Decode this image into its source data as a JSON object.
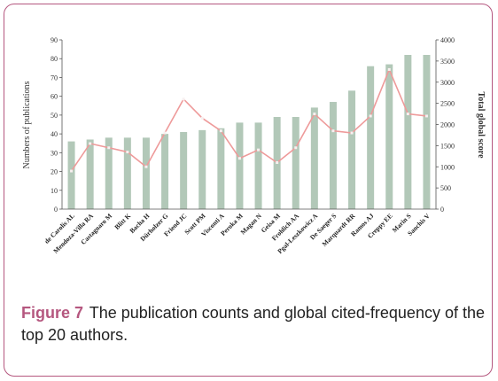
{
  "chart_data": {
    "type": "bar",
    "categories": [
      "de Carolis AL",
      "Mendoza-Villa RA",
      "Castagnaro M",
      "Blitt K",
      "Bacha H",
      "Dürholzer G",
      "Friend JC",
      "Scott PM",
      "Visconti A",
      "Peroka M",
      "Magan N",
      "Geisa M",
      "Frohlich AA",
      "Pgal-Leszkowicz A",
      "De Saeger S",
      "Marquardt RR",
      "Ramos AJ",
      "Creppy EE",
      "Marin S",
      "Sanchis V"
    ],
    "series": [
      {
        "name": "",
        "kind": "bar",
        "axis": "left",
        "values": [
          36,
          37,
          38,
          38,
          38,
          40,
          41,
          42,
          43,
          46,
          46,
          49,
          49,
          54,
          57,
          63,
          76,
          77,
          82,
          82
        ]
      },
      {
        "name": "",
        "kind": "line",
        "axis": "right",
        "values": [
          900,
          1550,
          1450,
          1350,
          1000,
          1800,
          2600,
          2150,
          1850,
          1200,
          1400,
          1100,
          1450,
          2250,
          1850,
          1800,
          2200,
          3300,
          2250,
          2200
        ]
      }
    ],
    "ylabel": "Numbers of publications",
    "y2label": "Total global score",
    "ylim": [
      0,
      90
    ],
    "y2lim": [
      0,
      4000
    ],
    "yticks": [
      0,
      10,
      20,
      30,
      40,
      50,
      60,
      70,
      80,
      90
    ],
    "y2ticks": [
      0,
      500,
      1000,
      1500,
      2000,
      2500,
      3000,
      3500,
      4000
    ],
    "bar_color": "#b2c8b8",
    "line_color": "#ee9a9a",
    "marker_color": "#f7f0f0"
  },
  "caption": {
    "figure_label": "Figure 7",
    "text": "The publication counts and global cited-frequency of the top 20 authors."
  }
}
